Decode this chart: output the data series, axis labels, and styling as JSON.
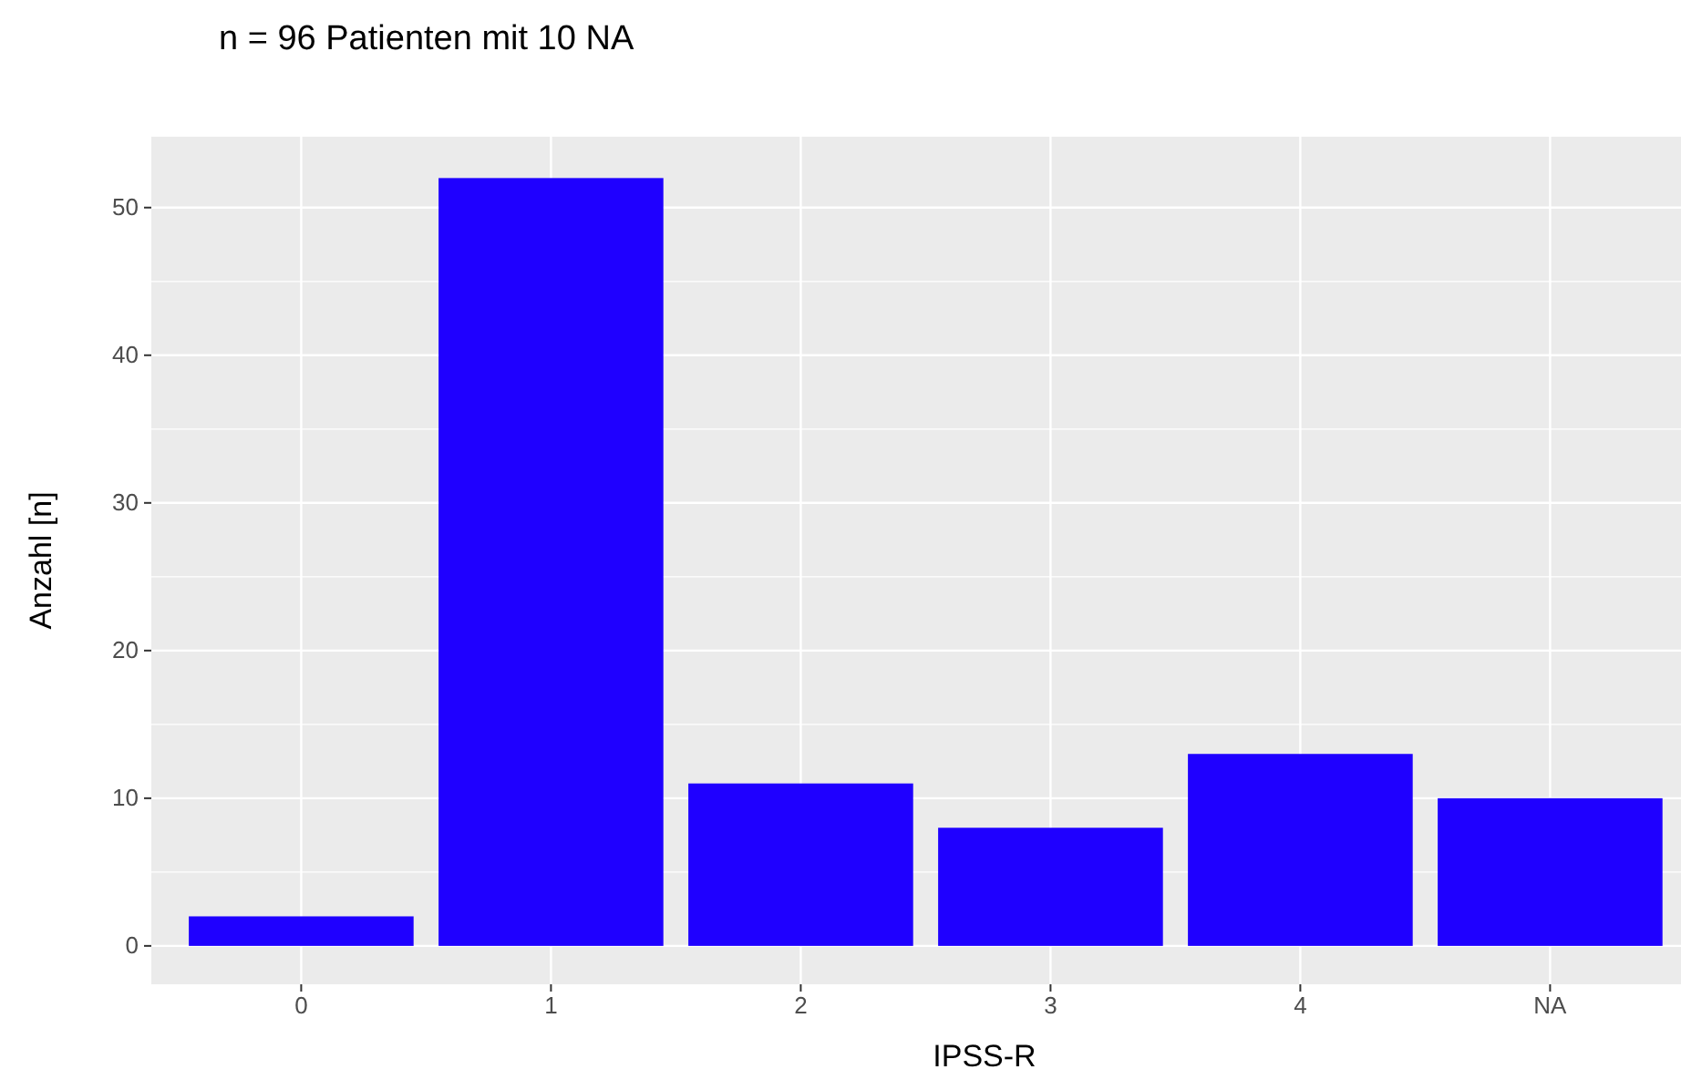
{
  "chart_data": {
    "type": "bar",
    "title": "n = 96 Patienten mit 10 NA",
    "xlabel": "IPSS-R",
    "ylabel": "Anzahl [n]",
    "categories": [
      "0",
      "1",
      "2",
      "3",
      "4",
      "NA"
    ],
    "values": [
      2,
      52,
      11,
      8,
      13,
      10
    ],
    "color": "#1f00ff",
    "ylim": [
      -2.6,
      54.8
    ],
    "yticks": [
      0,
      {
        "value": 5,
        "label": null
      },
      10,
      {
        "value": 15,
        "label": null
      },
      20,
      {
        "value": 25,
        "label": null
      },
      30,
      {
        "value": 35,
        "label": null
      },
      40,
      {
        "value": 45,
        "label": null
      },
      50
    ],
    "grid": true
  }
}
